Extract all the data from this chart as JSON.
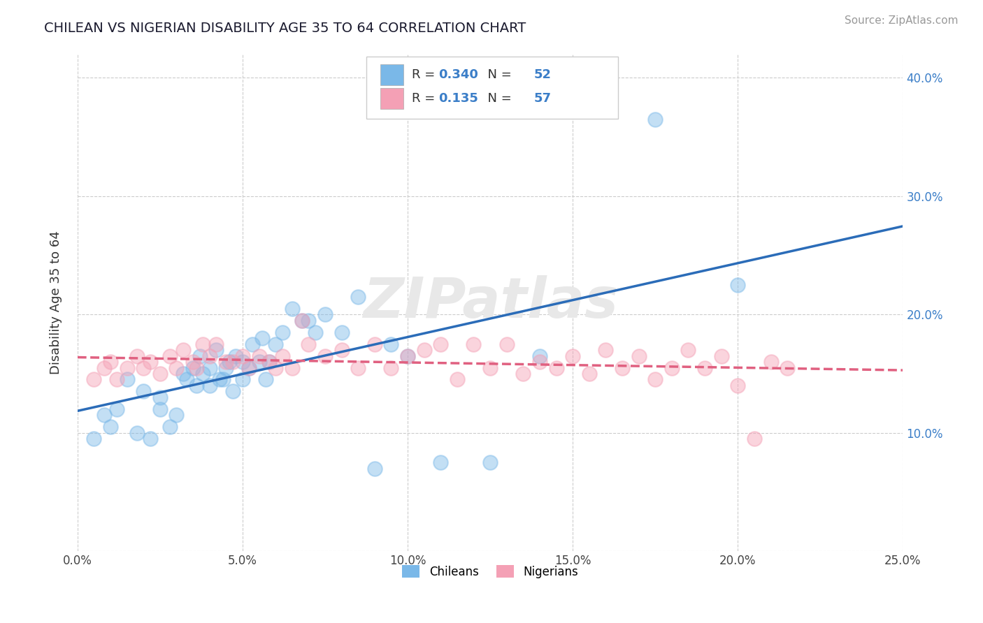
{
  "title": "CHILEAN VS NIGERIAN DISABILITY AGE 35 TO 64 CORRELATION CHART",
  "source": "Source: ZipAtlas.com",
  "ylabel": "Disability Age 35 to 64",
  "xlim": [
    0.0,
    0.25
  ],
  "ylim": [
    0.0,
    0.42
  ],
  "x_ticks": [
    0.0,
    0.05,
    0.1,
    0.15,
    0.2,
    0.25
  ],
  "x_tick_labels": [
    "0.0%",
    "5.0%",
    "10.0%",
    "15.0%",
    "20.0%",
    "25.0%"
  ],
  "y_ticks": [
    0.0,
    0.1,
    0.2,
    0.3,
    0.4
  ],
  "y_tick_labels_left": [
    "",
    "",
    "",
    "",
    ""
  ],
  "y_tick_labels_right": [
    "",
    "10.0%",
    "20.0%",
    "30.0%",
    "40.0%"
  ],
  "chilean_color": "#7ab8e8",
  "nigerian_color": "#f4a0b5",
  "trend_chilean_color": "#2b6cb8",
  "trend_nigerian_color": "#e06080",
  "R_chilean": 0.34,
  "N_chilean": 52,
  "R_nigerian": 0.135,
  "N_nigerian": 57,
  "legend_label_chilean": "Chileans",
  "legend_label_nigerian": "Nigerians",
  "watermark": "ZIPatlas",
  "background_color": "#ffffff",
  "grid_color": "#cccccc",
  "chilean_x": [
    0.005,
    0.008,
    0.01,
    0.012,
    0.015,
    0.018,
    0.02,
    0.022,
    0.025,
    0.025,
    0.028,
    0.03,
    0.032,
    0.033,
    0.035,
    0.036,
    0.037,
    0.038,
    0.04,
    0.04,
    0.042,
    0.043,
    0.044,
    0.045,
    0.046,
    0.047,
    0.048,
    0.05,
    0.05,
    0.052,
    0.053,
    0.055,
    0.056,
    0.057,
    0.058,
    0.06,
    0.062,
    0.065,
    0.068,
    0.07,
    0.072,
    0.075,
    0.08,
    0.085,
    0.09,
    0.095,
    0.1,
    0.11,
    0.125,
    0.14,
    0.175,
    0.2
  ],
  "chilean_y": [
    0.095,
    0.115,
    0.105,
    0.12,
    0.145,
    0.1,
    0.135,
    0.095,
    0.12,
    0.13,
    0.105,
    0.115,
    0.15,
    0.145,
    0.155,
    0.14,
    0.165,
    0.15,
    0.155,
    0.14,
    0.17,
    0.145,
    0.145,
    0.155,
    0.16,
    0.135,
    0.165,
    0.16,
    0.145,
    0.155,
    0.175,
    0.16,
    0.18,
    0.145,
    0.16,
    0.175,
    0.185,
    0.205,
    0.195,
    0.195,
    0.185,
    0.2,
    0.185,
    0.215,
    0.07,
    0.175,
    0.165,
    0.075,
    0.075,
    0.165,
    0.365,
    0.225
  ],
  "nigerian_x": [
    0.005,
    0.008,
    0.01,
    0.012,
    0.015,
    0.018,
    0.02,
    0.022,
    0.025,
    0.028,
    0.03,
    0.032,
    0.035,
    0.036,
    0.038,
    0.04,
    0.042,
    0.045,
    0.047,
    0.05,
    0.052,
    0.055,
    0.058,
    0.06,
    0.062,
    0.065,
    0.068,
    0.07,
    0.075,
    0.08,
    0.085,
    0.09,
    0.095,
    0.1,
    0.105,
    0.11,
    0.115,
    0.12,
    0.125,
    0.13,
    0.135,
    0.14,
    0.145,
    0.15,
    0.155,
    0.16,
    0.165,
    0.17,
    0.175,
    0.18,
    0.185,
    0.19,
    0.195,
    0.2,
    0.205,
    0.21,
    0.215
  ],
  "nigerian_y": [
    0.145,
    0.155,
    0.16,
    0.145,
    0.155,
    0.165,
    0.155,
    0.16,
    0.15,
    0.165,
    0.155,
    0.17,
    0.16,
    0.155,
    0.175,
    0.165,
    0.175,
    0.16,
    0.16,
    0.165,
    0.155,
    0.165,
    0.16,
    0.155,
    0.165,
    0.155,
    0.195,
    0.175,
    0.165,
    0.17,
    0.155,
    0.175,
    0.155,
    0.165,
    0.17,
    0.175,
    0.145,
    0.175,
    0.155,
    0.175,
    0.15,
    0.16,
    0.155,
    0.165,
    0.15,
    0.17,
    0.155,
    0.165,
    0.145,
    0.155,
    0.17,
    0.155,
    0.165,
    0.14,
    0.095,
    0.16,
    0.155
  ]
}
